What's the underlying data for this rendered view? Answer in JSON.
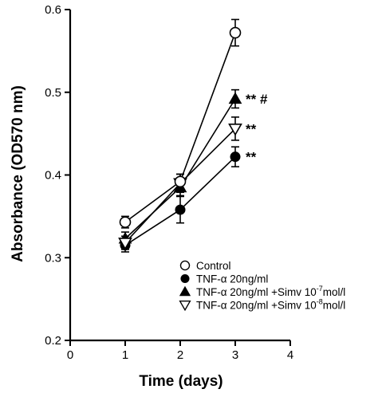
{
  "chart_data": {
    "type": "line",
    "xlabel": "Time (days)",
    "ylabel": "Absorbance (OD570 nm)",
    "xlim": [
      0,
      4
    ],
    "ylim": [
      0.2,
      0.6
    ],
    "xticks": [
      "0",
      "1",
      "2",
      "3",
      "4"
    ],
    "yticks": [
      "0.2",
      "0.3",
      "0.4",
      "0.5",
      "0.6"
    ],
    "x": [
      1,
      2,
      3
    ],
    "grid": false,
    "legend_position": "lower-right",
    "series": [
      {
        "name": "Control",
        "marker": "open-circle",
        "values": [
          0.343,
          0.392,
          0.572
        ],
        "errors": [
          0.007,
          0.009,
          0.016
        ],
        "annotation": ""
      },
      {
        "name": "TNF-α 20ng/ml",
        "marker": "filled-circle",
        "values": [
          0.315,
          0.358,
          0.422
        ],
        "errors": [
          0.008,
          0.016,
          0.012
        ],
        "annotation": "**"
      },
      {
        "name": "TNF-α 20ng/ml +Simv 10",
        "name_exponent": "-7",
        "name_suffix": "mol/l",
        "marker": "filled-triangle",
        "values": [
          0.323,
          0.385,
          0.492
        ],
        "errors": [
          0.008,
          0.01,
          0.011
        ],
        "annotation": "** #"
      },
      {
        "name": "TNF-α 20ng/ml +Simv 10",
        "name_exponent": "-8",
        "name_suffix": "mol/l",
        "marker": "open-triangle-down",
        "values": [
          0.318,
          0.39,
          0.456
        ],
        "errors": [
          0.008,
          0.011,
          0.014
        ],
        "annotation": "**"
      }
    ]
  }
}
